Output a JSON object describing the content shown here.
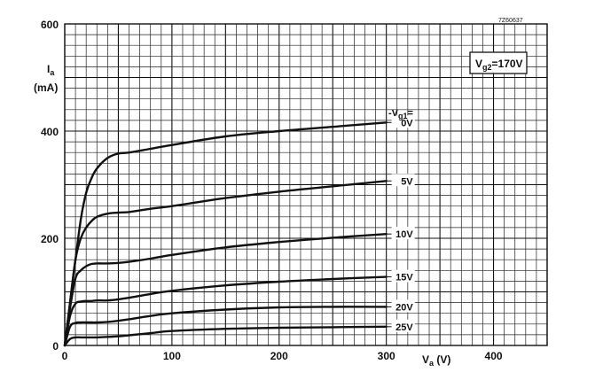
{
  "chart_data": {
    "type": "line",
    "title": "",
    "code": "7Z60637",
    "condition_label": "Vg2=170V",
    "xlabel": "Va (V)",
    "ylabel_symbol": "Ia",
    "ylabel_unit": "(mA)",
    "xlim": [
      0,
      450
    ],
    "ylim": [
      0,
      600
    ],
    "xticks": [
      0,
      100,
      200,
      300,
      400
    ],
    "xtick_labels": [
      "0",
      "100",
      "200",
      "300",
      "400"
    ],
    "yticks": [
      0,
      200,
      400,
      600
    ],
    "ytick_labels": [
      "0",
      "200",
      "400",
      "600"
    ],
    "grid": true,
    "grid_step_x": 10,
    "grid_step_y": 20,
    "legend_header": "-Vg1=",
    "series": [
      {
        "name": "0V",
        "x": [
          0,
          5,
          10,
          15,
          20,
          25,
          30,
          40,
          50,
          60,
          80,
          100,
          150,
          200,
          250,
          300
        ],
        "y": [
          0,
          80,
          160,
          235,
          285,
          312,
          330,
          350,
          358,
          360,
          367,
          374,
          390,
          400,
          408,
          416
        ]
      },
      {
        "name": "5V",
        "x": [
          0,
          5,
          10,
          15,
          20,
          25,
          30,
          40,
          50,
          60,
          80,
          100,
          150,
          200,
          250,
          300
        ],
        "y": [
          0,
          80,
          160,
          200,
          220,
          232,
          240,
          246,
          248,
          249,
          255,
          260,
          275,
          287,
          297,
          307
        ]
      },
      {
        "name": "10V",
        "x": [
          0,
          5,
          10,
          15,
          20,
          25,
          30,
          40,
          50,
          60,
          80,
          100,
          150,
          200,
          250,
          300
        ],
        "y": [
          0,
          70,
          125,
          140,
          148,
          152,
          153,
          153,
          154,
          156,
          162,
          169,
          183,
          193,
          201,
          208
        ]
      },
      {
        "name": "15V",
        "x": [
          0,
          5,
          10,
          15,
          20,
          25,
          30,
          40,
          50,
          60,
          80,
          100,
          150,
          200,
          250,
          300
        ],
        "y": [
          0,
          55,
          78,
          82,
          83,
          83,
          84,
          84,
          86,
          89,
          96,
          102,
          112,
          119,
          124,
          128
        ]
      },
      {
        "name": "20V",
        "x": [
          0,
          5,
          10,
          15,
          20,
          25,
          30,
          40,
          50,
          60,
          80,
          100,
          150,
          200,
          250,
          300
        ],
        "y": [
          0,
          35,
          42,
          43,
          43,
          43,
          43,
          44,
          46,
          49,
          55,
          60,
          67,
          71,
          72,
          72
        ]
      },
      {
        "name": "25V",
        "x": [
          0,
          5,
          10,
          15,
          20,
          25,
          30,
          40,
          50,
          60,
          80,
          100,
          150,
          200,
          250,
          300
        ],
        "y": [
          0,
          12,
          15,
          15,
          15,
          15,
          15,
          16,
          17,
          19,
          23,
          27,
          31,
          33,
          34,
          35
        ]
      }
    ]
  }
}
